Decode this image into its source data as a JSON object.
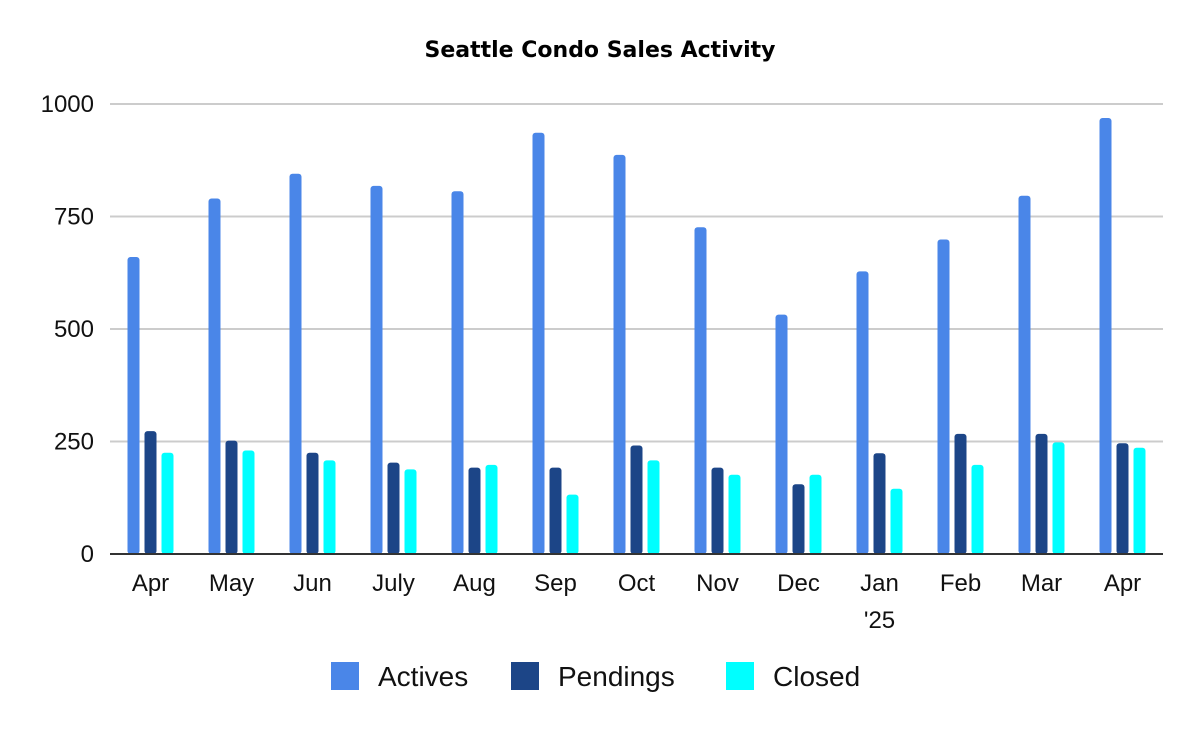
{
  "chart_data": {
    "type": "bar",
    "title": "Seattle Condo Sales Activity",
    "xlabel": "",
    "ylabel": "",
    "categories": [
      [
        "Apr"
      ],
      [
        "May"
      ],
      [
        "Jun"
      ],
      [
        "July"
      ],
      [
        "Aug"
      ],
      [
        "Sep"
      ],
      [
        "Oct"
      ],
      [
        "Nov"
      ],
      [
        "Dec"
      ],
      [
        "Jan",
        "'25"
      ],
      [
        "Feb"
      ],
      [
        "Mar"
      ],
      [
        "Apr"
      ]
    ],
    "series": [
      {
        "name": "Actives",
        "color": "#4A86E8",
        "values": [
          660,
          790,
          845,
          818,
          806,
          936,
          887,
          726,
          532,
          628,
          699,
          796,
          969
        ]
      },
      {
        "name": "Pendings",
        "color": "#1C4587",
        "values": [
          273,
          252,
          225,
          203,
          192,
          192,
          241,
          192,
          155,
          224,
          267,
          267,
          246
        ]
      },
      {
        "name": "Closed",
        "color": "#00FFFF",
        "values": [
          225,
          230,
          208,
          188,
          198,
          132,
          208,
          176,
          176,
          145,
          198,
          248,
          236
        ]
      }
    ],
    "ylim": [
      0,
      1000
    ],
    "yticks": [
      0,
      250,
      500,
      750,
      1000
    ],
    "grid": true,
    "legend": "bottom"
  }
}
